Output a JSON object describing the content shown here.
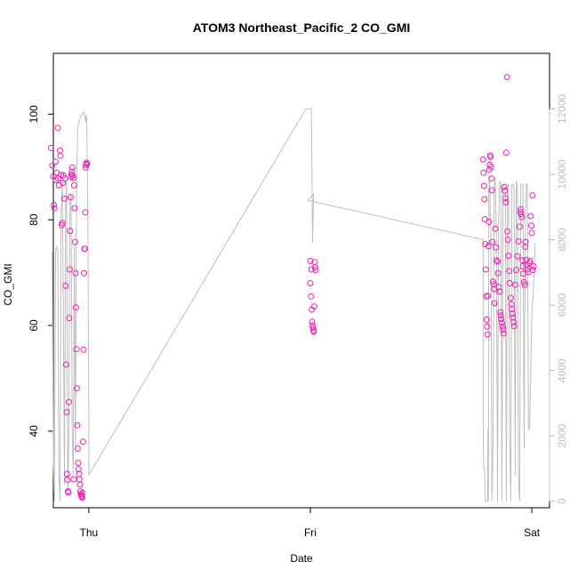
{
  "chart_data": {
    "type": "scatter",
    "title": "ATOM3 Northeast_Pacific_2 CO_GMI",
    "xlabel": "Date",
    "ylabel": "CO_GMI",
    "x_ticks": [
      {
        "label": "Thu",
        "t": 0.0
      },
      {
        "label": "Fri",
        "t": 1.0
      },
      {
        "label": "Sat",
        "t": 2.0
      }
    ],
    "xlim": [
      -0.16,
      2.08
    ],
    "ylim": [
      25.5,
      111.5
    ],
    "yticks": [
      40,
      60,
      80,
      100
    ],
    "y2lim": [
      -200,
      13700
    ],
    "y2ticks": [
      0,
      2000,
      4000,
      6000,
      8000,
      10000,
      12000
    ],
    "colors": {
      "points": "#ee1fb0",
      "line": "#bebebe"
    },
    "grid": false,
    "legend": "none",
    "series": [
      {
        "kind": "points",
        "points": [
          [
            -0.17,
            93.6
          ],
          [
            -0.165,
            90.3
          ],
          [
            -0.16,
            88.2
          ],
          [
            -0.158,
            82.8
          ],
          [
            -0.155,
            82.2
          ],
          [
            -0.15,
            91
          ],
          [
            -0.148,
            87.5
          ],
          [
            -0.145,
            88.9
          ],
          [
            -0.14,
            97.4
          ],
          [
            -0.138,
            87.8
          ],
          [
            -0.135,
            86.5
          ],
          [
            -0.13,
            93.1
          ],
          [
            -0.128,
            92.1
          ],
          [
            -0.125,
            88.5
          ],
          [
            -0.122,
            79
          ],
          [
            -0.12,
            79.4
          ],
          [
            -0.117,
            87
          ],
          [
            -0.115,
            88.4
          ],
          [
            -0.11,
            84
          ],
          [
            -0.108,
            87.8
          ],
          [
            -0.105,
            67.5
          ],
          [
            -0.103,
            52.6
          ],
          [
            -0.1,
            43.6
          ],
          [
            -0.098,
            31.9
          ],
          [
            -0.096,
            30.8
          ],
          [
            -0.094,
            28.6
          ],
          [
            -0.092,
            28.4
          ],
          [
            -0.09,
            45.5
          ],
          [
            -0.088,
            61.4
          ],
          [
            -0.086,
            70.6
          ],
          [
            -0.084,
            77.9
          ],
          [
            -0.082,
            84.3
          ],
          [
            -0.08,
            88.1
          ],
          [
            -0.078,
            88.6
          ],
          [
            -0.076,
            89.1
          ],
          [
            -0.074,
            89.9
          ],
          [
            -0.072,
            88.4
          ],
          [
            -0.07,
            87.9
          ],
          [
            -0.068,
            30.9
          ],
          [
            -0.066,
            86.5
          ],
          [
            -0.064,
            82.2
          ],
          [
            -0.062,
            75.8
          ],
          [
            -0.06,
            69.9
          ],
          [
            -0.058,
            63.4
          ],
          [
            -0.056,
            55.5
          ],
          [
            -0.054,
            48.1
          ],
          [
            -0.052,
            41.1
          ],
          [
            -0.05,
            36.7
          ],
          [
            -0.048,
            34
          ],
          [
            -0.046,
            32.8
          ],
          [
            -0.044,
            31.9
          ],
          [
            -0.042,
            30.9
          ],
          [
            -0.04,
            29.9
          ],
          [
            -0.038,
            28.6
          ],
          [
            -0.036,
            28.1
          ],
          [
            -0.034,
            27.8
          ],
          [
            -0.032,
            27.6
          ],
          [
            -0.03,
            27.4
          ],
          [
            -0.028,
            28.3
          ],
          [
            -0.026,
            38
          ],
          [
            -0.024,
            55.4
          ],
          [
            -0.022,
            69.9
          ],
          [
            -0.02,
            74.5
          ],
          [
            -0.018,
            74.5
          ],
          [
            -0.016,
            81.4
          ],
          [
            -0.014,
            89.9
          ],
          [
            -0.012,
            90.4
          ],
          [
            -0.01,
            90.8
          ],
          [
            -0.008,
            90.6
          ],
          [
            1.0,
            72.2
          ],
          [
            1.005,
            70.6
          ],
          [
            1.0,
            68
          ],
          [
            1.003,
            65.5
          ],
          [
            1.006,
            63
          ],
          [
            1.008,
            60.7
          ],
          [
            1.01,
            60
          ],
          [
            1.012,
            59.5
          ],
          [
            1.014,
            59
          ],
          [
            1.016,
            58.8
          ],
          [
            1.02,
            72
          ],
          [
            1.022,
            71
          ],
          [
            1.024,
            70.5
          ],
          [
            1.018,
            63.6
          ],
          [
            1.78,
            91.4
          ],
          [
            1.782,
            88.9
          ],
          [
            1.784,
            86.4
          ],
          [
            1.786,
            83.9
          ],
          [
            1.788,
            80.1
          ],
          [
            1.79,
            75.4
          ],
          [
            1.792,
            70.6
          ],
          [
            1.794,
            65.5
          ],
          [
            1.796,
            61.1
          ],
          [
            1.798,
            59.8
          ],
          [
            1.8,
            58.3
          ],
          [
            1.802,
            65.6
          ],
          [
            1.804,
            75
          ],
          [
            1.806,
            79.6
          ],
          [
            1.808,
            89.5
          ],
          [
            1.81,
            90.4
          ],
          [
            1.812,
            92.2
          ],
          [
            1.814,
            91.9
          ],
          [
            1.816,
            90
          ],
          [
            1.818,
            87.8
          ],
          [
            1.82,
            85.6
          ],
          [
            1.822,
            75.8
          ],
          [
            1.825,
            68.3
          ],
          [
            1.828,
            67.8
          ],
          [
            1.83,
            66.9
          ],
          [
            1.832,
            64.2
          ],
          [
            1.835,
            78.3
          ],
          [
            1.838,
            74.8
          ],
          [
            1.84,
            72.3
          ],
          [
            1.845,
            72.1
          ],
          [
            1.848,
            69.9
          ],
          [
            1.85,
            67.3
          ],
          [
            1.855,
            66.4
          ],
          [
            1.858,
            62.5
          ],
          [
            1.86,
            61.9
          ],
          [
            1.862,
            61.2
          ],
          [
            1.865,
            60.5
          ],
          [
            1.868,
            59.8
          ],
          [
            1.87,
            59.2
          ],
          [
            1.872,
            58.5
          ],
          [
            1.875,
            86.2
          ],
          [
            1.878,
            85.5
          ],
          [
            1.88,
            84.1
          ],
          [
            1.882,
            83.3
          ],
          [
            1.885,
            92.7
          ],
          [
            1.888,
            107
          ],
          [
            1.89,
            77.8
          ],
          [
            1.892,
            76.2
          ],
          [
            1.895,
            73.2
          ],
          [
            1.898,
            70.3
          ],
          [
            1.9,
            68
          ],
          [
            1.905,
            65.2
          ],
          [
            1.908,
            64
          ],
          [
            1.91,
            63.1
          ],
          [
            1.912,
            62.2
          ],
          [
            1.915,
            61.5
          ],
          [
            1.918,
            60.6
          ],
          [
            1.92,
            59.9
          ],
          [
            1.925,
            67.7
          ],
          [
            1.93,
            70.5
          ],
          [
            1.935,
            73.1
          ],
          [
            1.94,
            75.9
          ],
          [
            1.945,
            78.7
          ],
          [
            1.948,
            81.5
          ],
          [
            1.95,
            82
          ],
          [
            1.952,
            81.1
          ],
          [
            1.955,
            80.5
          ],
          [
            1.958,
            72.3
          ],
          [
            1.96,
            71.2
          ],
          [
            1.962,
            69.8
          ],
          [
            1.965,
            68.2
          ],
          [
            1.968,
            67.7
          ],
          [
            1.97,
            74.9
          ],
          [
            1.972,
            75.8
          ],
          [
            1.975,
            72.4
          ],
          [
            1.978,
            71.4
          ],
          [
            1.98,
            70.6
          ],
          [
            1.985,
            70.1
          ],
          [
            1.99,
            71.8
          ],
          [
            1.992,
            72.2
          ],
          [
            1.995,
            80.7
          ],
          [
            1.998,
            78.9
          ],
          [
            2.0,
            77.5
          ],
          [
            2.003,
            84.6
          ],
          [
            2.005,
            70.5
          ],
          [
            2.008,
            71.2
          ]
        ]
      },
      {
        "kind": "line",
        "axis": "right",
        "points": [
          [
            -0.17,
            7600
          ],
          [
            -0.165,
            7600
          ],
          [
            -0.16,
            1200
          ],
          [
            -0.155,
            0
          ],
          [
            -0.15,
            7600
          ],
          [
            -0.145,
            7800
          ],
          [
            -0.14,
            7700
          ],
          [
            -0.135,
            900
          ],
          [
            -0.13,
            0
          ],
          [
            -0.125,
            8800
          ],
          [
            -0.12,
            9800
          ],
          [
            -0.115,
            6200
          ],
          [
            -0.11,
            500
          ],
          [
            -0.105,
            9000
          ],
          [
            -0.1,
            9800
          ],
          [
            -0.095,
            200
          ],
          [
            -0.09,
            1800
          ],
          [
            -0.085,
            9200
          ],
          [
            -0.08,
            9400
          ],
          [
            -0.075,
            2200
          ],
          [
            -0.07,
            800
          ],
          [
            -0.065,
            7800
          ],
          [
            -0.06,
            1600
          ],
          [
            -0.055,
            9900
          ],
          [
            -0.05,
            11400
          ],
          [
            -0.045,
            11600
          ],
          [
            -0.04,
            11700
          ],
          [
            -0.035,
            11800
          ],
          [
            -0.03,
            11800
          ],
          [
            -0.025,
            11900
          ],
          [
            -0.02,
            11900
          ],
          [
            -0.015,
            11600
          ],
          [
            -0.01,
            11800
          ],
          [
            -0.005,
            9500
          ],
          [
            0.0,
            2500
          ],
          [
            0.0,
            800
          ],
          [
            0.98,
            12000
          ],
          [
            0.985,
            12000
          ],
          [
            0.99,
            12000
          ],
          [
            1.005,
            12000
          ],
          [
            1.01,
            7900
          ],
          [
            1.015,
            9400
          ],
          [
            0.99,
            9200
          ],
          [
            1.78,
            8000
          ],
          [
            1.78,
            2500
          ],
          [
            1.783,
            1000
          ],
          [
            1.786,
            1000
          ],
          [
            1.79,
            0
          ],
          [
            1.795,
            0
          ],
          [
            1.8,
            0
          ],
          [
            1.802,
            2200
          ],
          [
            1.804,
            0
          ],
          [
            1.806,
            9500
          ],
          [
            1.808,
            9800
          ],
          [
            1.81,
            9900
          ],
          [
            1.812,
            9000
          ],
          [
            1.815,
            8200
          ],
          [
            1.82,
            0
          ],
          [
            1.825,
            1800
          ],
          [
            1.83,
            9600
          ],
          [
            1.835,
            9900
          ],
          [
            1.84,
            8000
          ],
          [
            1.845,
            0
          ],
          [
            1.85,
            8500
          ],
          [
            1.855,
            9800
          ],
          [
            1.86,
            9700
          ],
          [
            1.865,
            0
          ],
          [
            1.87,
            9600
          ],
          [
            1.875,
            9700
          ],
          [
            1.88,
            9700
          ],
          [
            1.885,
            0
          ],
          [
            1.89,
            9700
          ],
          [
            1.895,
            9700
          ],
          [
            1.9,
            2000
          ],
          [
            1.905,
            0
          ],
          [
            1.91,
            9700
          ],
          [
            1.915,
            9700
          ],
          [
            1.92,
            9600
          ],
          [
            1.925,
            800
          ],
          [
            1.93,
            9800
          ],
          [
            1.935,
            9600
          ],
          [
            1.94,
            700
          ],
          [
            1.945,
            0
          ],
          [
            1.95,
            9700
          ],
          [
            1.96,
            9700
          ],
          [
            1.965,
            1600
          ],
          [
            1.97,
            8000
          ],
          [
            1.975,
            9700
          ],
          [
            1.98,
            9700
          ],
          [
            1.985,
            2200
          ],
          [
            1.99,
            2200
          ],
          [
            2.0,
            5800
          ],
          [
            2.005,
            6200
          ],
          [
            2.01,
            7000
          ],
          [
            2.015,
            7900
          ]
        ]
      }
    ]
  }
}
